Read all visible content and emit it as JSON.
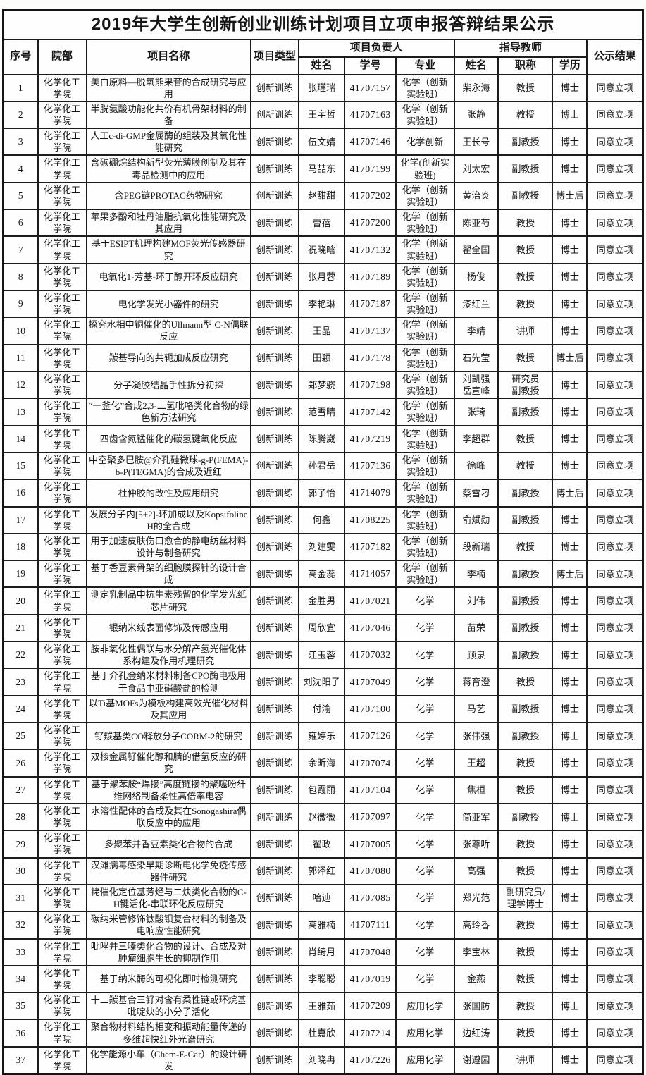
{
  "header": {
    "title": "2019年大学生创新创业训练计划项目立项申报答辩结果公示",
    "cols": {
      "no": "序号",
      "dept": "院部",
      "project": "项目名称",
      "type": "项目类型",
      "leader_group": "项目负责人",
      "leader_name": "姓名",
      "leader_sid": "学号",
      "leader_major": "专业",
      "advisor_group": "指导教师",
      "advisor_name": "姓名",
      "advisor_title": "职称",
      "advisor_degree": "学历",
      "result": "公示结果"
    }
  },
  "table": {
    "col_keys": [
      "no",
      "dept",
      "project",
      "type",
      "name",
      "sid",
      "major",
      "advisor",
      "title",
      "degree",
      "result"
    ],
    "rows": [
      {
        "no": "1",
        "dept": "化学化工学院",
        "project": "美白原料—脱氧熊果苷的合成研究与应用",
        "type": "创新训练",
        "name": "张瑾瑞",
        "sid": "41707157",
        "major": "化学（创新实验班）",
        "advisor": "柴永海",
        "title": "教授",
        "degree": "博士",
        "result": "同意立项"
      },
      {
        "no": "2",
        "dept": "化学化工学院",
        "project": "半胱氨酸功能化共价有机骨架材料的制备",
        "type": "创新训练",
        "name": "王宇哲",
        "sid": "41707163",
        "major": "化学（创新实验班）",
        "advisor": "张静",
        "title": "教授",
        "degree": "博士",
        "result": "同意立项"
      },
      {
        "no": "3",
        "dept": "化学化工学院",
        "project": "人工c-di-GMP金属酶的组装及其氧化性能研究",
        "type": "创新训练",
        "name": "伍文婧",
        "sid": "41707146",
        "major": "化学创新",
        "advisor": "王长号",
        "title": "副教授",
        "degree": "博士",
        "result": "同意立项"
      },
      {
        "no": "4",
        "dept": "化学化工学院",
        "project": "含碳硼烷结构新型荧光薄膜创制及其在毒品检测中的应用",
        "type": "创新训练",
        "name": "马喆东",
        "sid": "41707199",
        "major": "化学(创新实验班)",
        "advisor": "刘太宏",
        "title": "副教授",
        "degree": "博士",
        "result": "同意立项"
      },
      {
        "no": "5",
        "dept": "化学化工学院",
        "project": "含PEG链PROTAC药物研究",
        "type": "创新训练",
        "name": "赵甜甜",
        "sid": "41707202",
        "major": "化学（创新实验班）",
        "advisor": "黄治炎",
        "title": "副教授",
        "degree": "博士后",
        "result": "同意立项"
      },
      {
        "no": "6",
        "dept": "化学化工学院",
        "project": "苹果多酚和牡丹油脂抗氧化性能研究及其应用",
        "type": "创新训练",
        "name": "曹蓓",
        "sid": "41707200",
        "major": "化学（创新实验班）",
        "advisor": "陈亚芍",
        "title": "教授",
        "degree": "博士",
        "result": "同意立项"
      },
      {
        "no": "7",
        "dept": "化学化工学院",
        "project": "基于ESIPT机理构建MOF荧光传感器研究",
        "type": "创新训练",
        "name": "祝晓晗",
        "sid": "41707132",
        "major": "化学（创新实验班）",
        "advisor": "翟全国",
        "title": "教授",
        "degree": "博士",
        "result": "同意立项"
      },
      {
        "no": "8",
        "dept": "化学化工学院",
        "project": "电氧化1-芳基-环丁醇开环反应研究",
        "type": "创新训练",
        "name": "张月蓉",
        "sid": "41707189",
        "major": "化学（创新实验班）",
        "advisor": "杨俊",
        "title": "教授",
        "degree": "博士",
        "result": "同意立项"
      },
      {
        "no": "9",
        "dept": "化学化工学院",
        "project": "电化学发光小器件的研究",
        "type": "创新训练",
        "name": "李艳琳",
        "sid": "41707187",
        "major": "化学（创新实验班）",
        "advisor": "漆红兰",
        "title": "教授",
        "degree": "博士",
        "result": "同意立项"
      },
      {
        "no": "10",
        "dept": "化学化工学院",
        "project": "探究水相中铜催化的Ullmann型 C-N偶联反应",
        "type": "创新训练",
        "name": "王晶",
        "sid": "41707137",
        "major": "化学（创新实验班）",
        "advisor": "李靖",
        "title": "讲师",
        "degree": "博士",
        "result": "同意立项"
      },
      {
        "no": "11",
        "dept": "化学化工学院",
        "project": "羰基导向的共轭加成反应研究",
        "type": "创新训练",
        "name": "田颖",
        "sid": "41707178",
        "major": "化学（创新实验班）",
        "advisor": "石先莹",
        "title": "教授",
        "degree": "博士后",
        "result": "同意立项"
      },
      {
        "no": "12",
        "dept": "化学化工学院",
        "project": "分子凝胶结晶手性拆分初探",
        "type": "创新训练",
        "name": "郑梦骁",
        "sid": "41707198",
        "major": "化学（创新实验班）",
        "advisor": "刘凯强\n岳宣峰",
        "title": "研究员\n副教授",
        "degree": "博士",
        "result": "同意立项"
      },
      {
        "no": "13",
        "dept": "化学化工学院",
        "project": "“一釜化”合成2,3-二氢吡咯类化合物的绿色新方法研究",
        "type": "创新训练",
        "name": "范雪晴",
        "sid": "41707142",
        "major": "化学（创新实验班）",
        "advisor": "张琦",
        "title": "副教授",
        "degree": "博士",
        "result": "同意立项"
      },
      {
        "no": "14",
        "dept": "化学化工学院",
        "project": "四齿含氮锰催化的碳氢键氧化反应",
        "type": "创新训练",
        "name": "陈腾崴",
        "sid": "41707219",
        "major": "化学（创新实验班）",
        "advisor": "李超群",
        "title": "教授",
        "degree": "博士",
        "result": "同意立项"
      },
      {
        "no": "15",
        "dept": "化学化工学院",
        "project": "中空聚多巴胺@介孔硅微球-g-P(FEMA)-b-P(TEGMA)的合成及近红",
        "type": "创新训练",
        "name": "孙君岳",
        "sid": "41707136",
        "major": "化学（创新实验班）",
        "advisor": "徐峰",
        "title": "教授",
        "degree": "博士",
        "result": "同意立项"
      },
      {
        "no": "16",
        "dept": "化学化工学院",
        "project": "杜仲胶的改性及应用研究",
        "type": "创新训练",
        "name": "郭子怡",
        "sid": "41714079",
        "major": "化学（创新实验班）",
        "advisor": "蔡雪刁",
        "title": "副教授",
        "degree": "博士后",
        "result": "同意立项"
      },
      {
        "no": "17",
        "dept": "化学化工学院",
        "project": "发展分子内[5+2]-环加成以及Kopsifoline H的全合成",
        "type": "创新训练",
        "name": "何鑫",
        "sid": "41708225",
        "major": "化学（创新实验班）",
        "advisor": "俞斌勋",
        "title": "副教授",
        "degree": "博士",
        "result": "同意立项"
      },
      {
        "no": "18",
        "dept": "化学化工学院",
        "project": "用于加速皮肤伤口愈合的静电纺丝材料设计与制备研究",
        "type": "创新训练",
        "name": "刘建雯",
        "sid": "41707182",
        "major": "化学（创新实验班）",
        "advisor": "段新瑞",
        "title": "教授",
        "degree": "博士",
        "result": "同意立项"
      },
      {
        "no": "19",
        "dept": "化学化工学院",
        "project": "基于香豆素骨架的细胞膜探针的设计合成",
        "type": "创新训练",
        "name": "高金蕊",
        "sid": "41714057",
        "major": "化学（创新实验班）",
        "advisor": "李楠",
        "title": "副教授",
        "degree": "博士后",
        "result": "同意立项"
      },
      {
        "no": "20",
        "dept": "化学化工学院",
        "project": "测定乳制品中抗生素残留的化学发光纸芯片研究",
        "type": "创新训练",
        "name": "金胜男",
        "sid": "41707021",
        "major": "化学",
        "advisor": "刘伟",
        "title": "副教授",
        "degree": "博士",
        "result": "同意立项"
      },
      {
        "no": "21",
        "dept": "化学化工学院",
        "project": "银纳米线表面修饰及传感应用",
        "type": "创新训练",
        "name": "周欣宜",
        "sid": "41707046",
        "major": "化学",
        "advisor": "苗荣",
        "title": "副教授",
        "degree": "博士",
        "result": "同意立项"
      },
      {
        "no": "22",
        "dept": "化学化工学院",
        "project": "胺非氧化性偶联与水分解产氢光催化体系构建及作用机理研究",
        "type": "创新训练",
        "name": "江玉蓉",
        "sid": "41707032",
        "major": "化学",
        "advisor": "顾泉",
        "title": "副教授",
        "degree": "博士",
        "result": "同意立项"
      },
      {
        "no": "23",
        "dept": "化学化工学院",
        "project": "基于介孔金纳米材料制备CPO酶电极用于食品中亚硝酸盐的检测",
        "type": "创新训练",
        "name": "刘沈阳子",
        "sid": "41707049",
        "major": "化学",
        "advisor": "蒋育澄",
        "title": "教授",
        "degree": "博士",
        "result": "同意立项"
      },
      {
        "no": "24",
        "dept": "化学化工学院",
        "project": "以Ti基MOFs为模板构建高效光催化材料及其应用",
        "type": "创新训练",
        "name": "付渝",
        "sid": "41707100",
        "major": "化学",
        "advisor": "马艺",
        "title": "副教授",
        "degree": "博士",
        "result": "同意立项"
      },
      {
        "no": "25",
        "dept": "化学化工学院",
        "project": "钌羰基类CO释放分子CORM-2的研究",
        "type": "创新训练",
        "name": "雍婷乐",
        "sid": "41707126",
        "major": "化学",
        "advisor": "张伟强",
        "title": "副教授",
        "degree": "博士",
        "result": "同意立项"
      },
      {
        "no": "26",
        "dept": "化学化工学院",
        "project": "双核金属钌催化醇和腈的借氢反应的研究",
        "type": "创新训练",
        "name": "余昕海",
        "sid": "41707074",
        "major": "化学",
        "advisor": "王超",
        "title": "教授",
        "degree": "博士",
        "result": "同意立项"
      },
      {
        "no": "27",
        "dept": "化学化工学院",
        "project": "基于聚苯胺“焊接”高度链接的聚噻吩纤维网络制备柔性高倍率电容",
        "type": "创新训练",
        "name": "包霞丽",
        "sid": "41707104",
        "major": "化学",
        "advisor": "焦桓",
        "title": "教授",
        "degree": "博士",
        "result": "同意立项"
      },
      {
        "no": "28",
        "dept": "化学化工学院",
        "project": "水溶性配体的合成及其在Sonogashira偶联反应中的应用",
        "type": "创新训练",
        "name": "赵微微",
        "sid": "41707097",
        "major": "化学",
        "advisor": "简亚军",
        "title": "副教授",
        "degree": "博士",
        "result": "同意立项"
      },
      {
        "no": "29",
        "dept": "化学化工学院",
        "project": "多聚苯并香豆素类化合物的合成",
        "type": "创新训练",
        "name": "翟政",
        "sid": "41707005",
        "major": "化学",
        "advisor": "张尊听",
        "title": "教授",
        "degree": "博士",
        "result": "同意立项"
      },
      {
        "no": "30",
        "dept": "化学化工学院",
        "project": "汉滩病毒感染早期诊断电化学免疫传感器件研究",
        "type": "创新训练",
        "name": "郭泽红",
        "sid": "41707080",
        "major": "化学",
        "advisor": "高强",
        "title": "教授",
        "degree": "博士",
        "result": "同意立项"
      },
      {
        "no": "31",
        "dept": "化学化工学院",
        "project": "铑催化定位基芳烃与二炔类化合物的C-H键活化-串联环化反应研究",
        "type": "创新训练",
        "name": "哈迪",
        "sid": "41707085",
        "major": "化学",
        "advisor": "郑光范",
        "title": "副研究员/\n理学博士",
        "degree": "博士",
        "result": "同意立项"
      },
      {
        "no": "32",
        "dept": "化学化工学院",
        "project": "碳纳米管修饰钛酸钡复合材料的制备及电响应性能研究",
        "type": "创新训练",
        "name": "高雅楠",
        "sid": "41707111",
        "major": "化学",
        "advisor": "高玲香",
        "title": "教授",
        "degree": "博士",
        "result": "同意立项"
      },
      {
        "no": "33",
        "dept": "化学化工学院",
        "project": "吡唑并三嗪类化合物的设计、合成及对肿瘤细胞生长的抑制作用",
        "type": "创新训练",
        "name": "肖绮月",
        "sid": "41707048",
        "major": "化学",
        "advisor": "李宝林",
        "title": "教授",
        "degree": "博士",
        "result": "同意立项"
      },
      {
        "no": "34",
        "dept": "化学化工学院",
        "project": "基于纳米酶的可视化即时检测研究",
        "type": "创新训练",
        "name": "李聪聪",
        "sid": "41707019",
        "major": "化学",
        "advisor": "金燕",
        "title": "教授",
        "degree": "博士",
        "result": "同意立项"
      },
      {
        "no": "35",
        "dept": "化学化工学院",
        "project": "十二羰基合三钌对含有柔性链或环烷基吡啶炔的小分子活化",
        "type": "创新训练",
        "name": "王雅茹",
        "sid": "41707209",
        "major": "应用化学",
        "advisor": "张国防",
        "title": "教授",
        "degree": "博士",
        "result": "同意立项"
      },
      {
        "no": "36",
        "dept": "化学化工学院",
        "project": "聚合物材料结构相变和振动能量传递的多维超快红外光谱研究",
        "type": "创新训练",
        "name": "杜嘉欣",
        "sid": "41707214",
        "major": "应用化学",
        "advisor": "边红涛",
        "title": "教授",
        "degree": "博士",
        "result": "同意立项"
      },
      {
        "no": "37",
        "dept": "化学化工学院",
        "project": "化学能源小车（Chem-E-Car）的设计研发",
        "type": "创新训练",
        "name": "刘晓冉",
        "sid": "41707226",
        "major": "应用化学",
        "advisor": "谢遵园",
        "title": "讲师",
        "degree": "博士",
        "result": "同意立项"
      }
    ]
  }
}
